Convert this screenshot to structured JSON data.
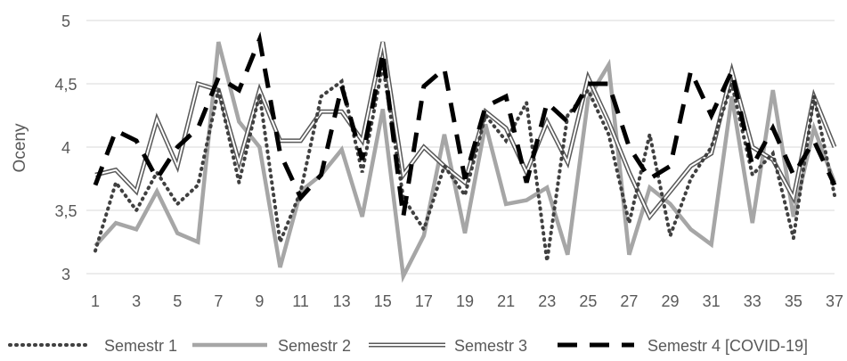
{
  "chart_data": {
    "type": "line",
    "title": "",
    "xlabel": "",
    "ylabel": "Oceny",
    "ylim": [
      3,
      5
    ],
    "yticks": [
      "3",
      "3,5",
      "4",
      "4,5",
      "5"
    ],
    "xticks": [
      "1",
      "3",
      "5",
      "7",
      "9",
      "11",
      "13",
      "15",
      "17",
      "19",
      "21",
      "23",
      "25",
      "27",
      "29",
      "31",
      "33",
      "35",
      "37"
    ],
    "x": [
      1,
      2,
      3,
      4,
      5,
      6,
      7,
      8,
      9,
      10,
      11,
      12,
      13,
      14,
      15,
      16,
      17,
      18,
      19,
      20,
      21,
      22,
      23,
      24,
      25,
      26,
      27,
      28,
      29,
      30,
      31,
      32,
      33,
      34,
      35,
      36,
      37
    ],
    "grid": "horizontal",
    "legend_position": "bottom",
    "series": [
      {
        "name": "Semestr 1",
        "style": "dotted",
        "color": "#404040",
        "values": [
          3.18,
          3.72,
          3.5,
          3.8,
          3.55,
          3.7,
          4.45,
          3.72,
          4.42,
          3.25,
          3.65,
          4.4,
          4.52,
          3.8,
          4.65,
          3.6,
          3.35,
          3.85,
          3.62,
          4.25,
          4.05,
          4.35,
          3.1,
          4.25,
          4.45,
          4.1,
          3.4,
          4.1,
          3.3,
          3.75,
          4.0,
          4.5,
          3.78,
          3.95,
          3.28,
          4.4,
          3.62
        ]
      },
      {
        "name": "Semestr 2",
        "style": "solid-thick",
        "color": "#a6a6a6",
        "values": [
          3.22,
          3.4,
          3.35,
          3.65,
          3.32,
          3.25,
          4.83,
          4.2,
          4.0,
          3.05,
          3.65,
          3.78,
          3.98,
          3.45,
          4.3,
          2.98,
          3.3,
          4.1,
          3.32,
          4.18,
          3.55,
          3.58,
          3.68,
          3.15,
          4.38,
          4.65,
          3.15,
          3.68,
          3.55,
          3.35,
          3.23,
          4.4,
          3.4,
          4.45,
          3.45,
          4.15,
          3.72
        ]
      },
      {
        "name": "Semestr 3",
        "style": "double",
        "color": "#595959",
        "values": [
          3.78,
          3.82,
          3.65,
          4.22,
          3.85,
          4.5,
          4.45,
          3.88,
          4.45,
          4.05,
          4.05,
          4.28,
          4.28,
          4.05,
          4.83,
          3.78,
          4.0,
          3.85,
          3.72,
          4.28,
          4.15,
          3.8,
          4.2,
          3.88,
          4.55,
          4.2,
          3.8,
          3.45,
          3.65,
          3.85,
          3.95,
          4.6,
          4.0,
          3.9,
          3.6,
          4.4,
          4.0
        ]
      },
      {
        "name": "Semestr 4 [COVID-19]",
        "style": "dashed",
        "color": "#000000",
        "values": [
          3.7,
          4.13,
          4.05,
          3.75,
          4.0,
          4.15,
          4.55,
          4.45,
          4.85,
          3.95,
          3.6,
          3.78,
          4.48,
          3.9,
          4.75,
          3.45,
          4.48,
          4.62,
          3.75,
          4.32,
          4.4,
          3.72,
          4.35,
          4.2,
          4.5,
          4.5,
          4.0,
          3.75,
          3.85,
          4.6,
          4.25,
          4.6,
          3.85,
          4.15,
          3.78,
          4.05,
          3.7
        ]
      }
    ]
  }
}
